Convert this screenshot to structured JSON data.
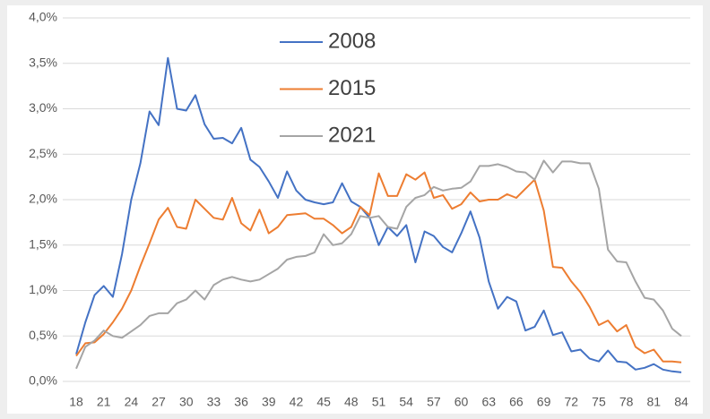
{
  "chart_data": {
    "type": "line",
    "categories": [
      18,
      null,
      null,
      21,
      null,
      null,
      24,
      null,
      null,
      27,
      null,
      null,
      30,
      null,
      null,
      33,
      null,
      null,
      36,
      null,
      null,
      39,
      null,
      null,
      42,
      null,
      null,
      45,
      null,
      null,
      48,
      null,
      null,
      51,
      null,
      null,
      54,
      null,
      null,
      57,
      null,
      null,
      60,
      null,
      null,
      63,
      null,
      null,
      66,
      null,
      null,
      69,
      null,
      null,
      72,
      null,
      null,
      75,
      null,
      null,
      78,
      null,
      null,
      81,
      null,
      null,
      84
    ],
    "series": [
      {
        "name": "2008",
        "color": "#4472c4",
        "values": [
          0.3,
          0.65,
          0.95,
          1.05,
          0.93,
          1.4,
          2.0,
          2.4,
          2.97,
          2.82,
          3.56,
          3.0,
          2.98,
          3.15,
          2.83,
          2.67,
          2.68,
          2.62,
          2.79,
          2.44,
          2.36,
          2.2,
          2.02,
          2.31,
          2.1,
          2.0,
          1.97,
          1.95,
          1.97,
          2.18,
          1.98,
          1.92,
          1.8,
          1.5,
          1.7,
          1.6,
          1.72,
          1.31,
          1.65,
          1.6,
          1.48,
          1.42,
          1.63,
          1.87,
          1.58,
          1.1,
          0.8,
          0.93,
          0.88,
          0.56,
          0.6,
          0.78,
          0.51,
          0.54,
          0.33,
          0.35,
          0.25,
          0.22,
          0.34,
          0.22,
          0.21,
          0.13,
          0.15,
          0.19,
          0.13,
          0.11,
          0.1
        ]
      },
      {
        "name": "2015",
        "color": "#ed7d31",
        "values": [
          0.28,
          0.42,
          0.43,
          0.52,
          0.65,
          0.8,
          1.0,
          1.27,
          1.52,
          1.78,
          1.91,
          1.7,
          1.68,
          2.0,
          1.9,
          1.8,
          1.78,
          2.02,
          1.74,
          1.66,
          1.89,
          1.63,
          1.7,
          1.83,
          1.84,
          1.85,
          1.79,
          1.79,
          1.72,
          1.63,
          1.7,
          1.92,
          1.83,
          2.29,
          2.04,
          2.04,
          2.28,
          2.22,
          2.3,
          2.02,
          2.05,
          1.9,
          1.95,
          2.08,
          1.98,
          2.0,
          2.0,
          2.06,
          2.02,
          2.12,
          2.22,
          1.88,
          1.26,
          1.25,
          1.1,
          0.98,
          0.82,
          0.62,
          0.67,
          0.55,
          0.62,
          0.38,
          0.31,
          0.35,
          0.22,
          0.22,
          0.21
        ]
      },
      {
        "name": "2021",
        "color": "#a5a5a5",
        "values": [
          0.14,
          0.38,
          0.45,
          0.56,
          0.5,
          0.48,
          0.55,
          0.62,
          0.72,
          0.75,
          0.75,
          0.86,
          0.9,
          1.0,
          0.9,
          1.06,
          1.12,
          1.15,
          1.12,
          1.1,
          1.12,
          1.18,
          1.24,
          1.34,
          1.37,
          1.38,
          1.42,
          1.62,
          1.5,
          1.52,
          1.62,
          1.82,
          1.8,
          1.82,
          1.7,
          1.68,
          1.92,
          2.02,
          2.05,
          2.14,
          2.1,
          2.12,
          2.13,
          2.2,
          2.37,
          2.37,
          2.39,
          2.36,
          2.31,
          2.3,
          2.22,
          2.43,
          2.3,
          2.42,
          2.42,
          2.4,
          2.4,
          2.12,
          1.45,
          1.32,
          1.31,
          1.1,
          0.92,
          0.9,
          0.78,
          0.58,
          0.5
        ]
      }
    ],
    "ylim": [
      0,
      4
    ],
    "yticks": [
      {
        "value": 0,
        "label": "0,0%"
      },
      {
        "value": 0.5,
        "label": "0,5%"
      },
      {
        "value": 1,
        "label": "1,0%"
      },
      {
        "value": 1.5,
        "label": "1,5%"
      },
      {
        "value": 2,
        "label": "2,0%"
      },
      {
        "value": 2.5,
        "label": "2,5%"
      },
      {
        "value": 3,
        "label": "3,0%"
      },
      {
        "value": 3.5,
        "label": "3,5%"
      },
      {
        "value": 4,
        "label": "4,0%"
      }
    ],
    "grid": true,
    "legend": "top"
  }
}
